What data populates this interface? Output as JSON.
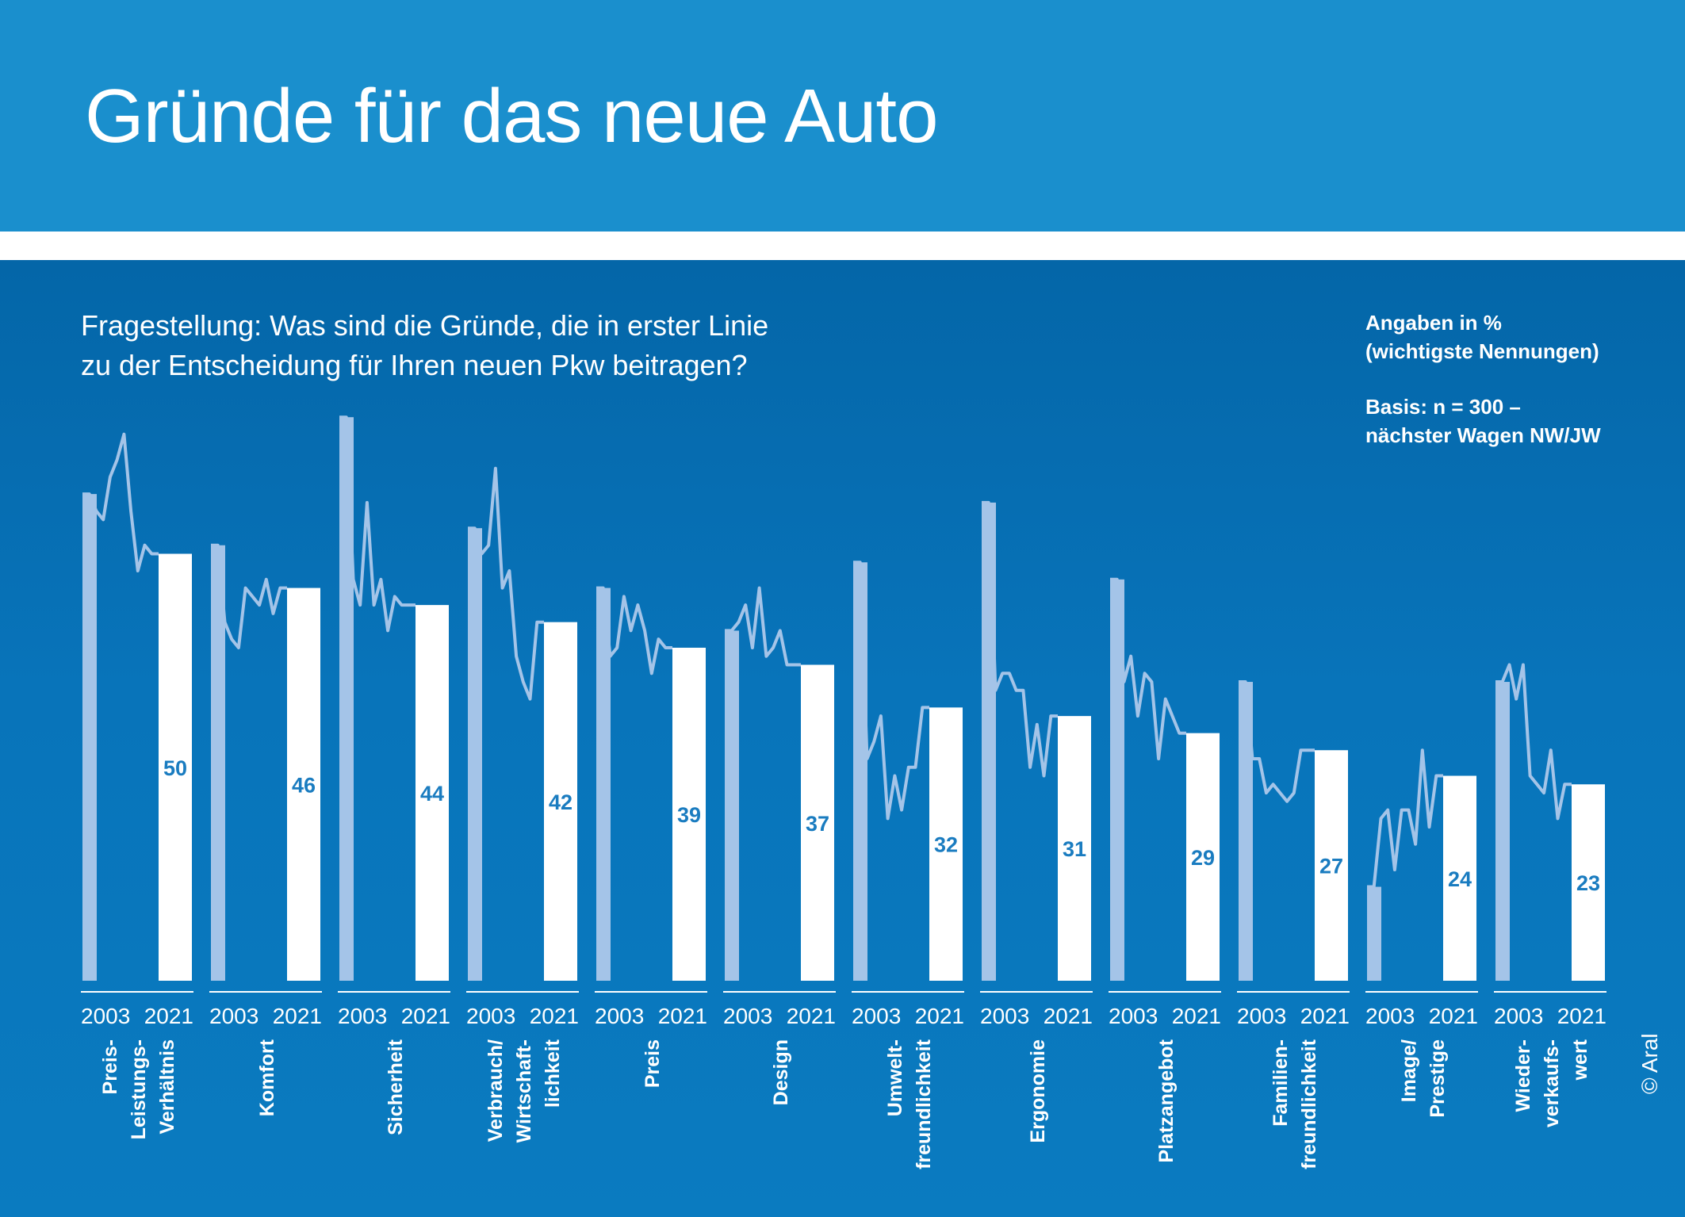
{
  "title": "Gründe für das neue Auto",
  "question": {
    "line1": "Fragestellung: Was sind die Gründe, die in erster Linie",
    "line2": "zu der Entscheidung für Ihren neuen Pkw beitragen?"
  },
  "notes": {
    "unit_line1": "Angaben in %",
    "unit_line2": "(wichtigste Nennungen)",
    "basis_line1": "Basis: n = 300 –",
    "basis_line2": "nächster Wagen NW/JW"
  },
  "copyright": "© Aral",
  "colors": {
    "header_bg": "#1a8fcd",
    "panel_bg": "#0874ba",
    "bar_2003": "#a4c4e8",
    "bar_2021": "#ffffff",
    "line": "#a4c4e8",
    "value_text": "#1a7cc0"
  },
  "chart_data": {
    "type": "bar",
    "title": "Gründe für das neue Auto",
    "year_start": "2003",
    "year_end": "2021",
    "ylim": [
      0,
      70
    ],
    "grid": false,
    "legend": "none",
    "series_note": "2003 (light bar), yearly trend line, 2021 (white bar with label)",
    "categories": [
      {
        "label": [
          "Preis-",
          "Leistungs-",
          "Verhältnis"
        ],
        "v2003": 57,
        "v2021": 50,
        "trend": [
          57,
          57,
          55,
          54,
          59,
          61,
          64,
          55,
          48,
          51,
          50,
          50
        ]
      },
      {
        "label": [
          "Komfort"
        ],
        "v2003": 51,
        "v2021": 46,
        "trend": [
          51,
          51,
          42,
          40,
          39,
          46,
          45,
          44,
          47,
          43,
          46,
          46
        ]
      },
      {
        "label": [
          "Sicherheit"
        ],
        "v2003": 66,
        "v2021": 44,
        "trend": [
          66,
          66,
          47,
          44,
          56,
          44,
          47,
          41,
          45,
          44,
          44,
          44
        ]
      },
      {
        "label": [
          "Verbrauch/",
          "Wirtschaft-",
          "lichkeit"
        ],
        "v2003": 53,
        "v2021": 42,
        "trend": [
          53,
          53,
          50,
          51,
          60,
          46,
          48,
          38,
          35,
          33,
          42,
          42
        ]
      },
      {
        "label": [
          "Preis"
        ],
        "v2003": 46,
        "v2021": 39,
        "trend": [
          46,
          46,
          38,
          39,
          45,
          41,
          44,
          41,
          36,
          40,
          39,
          39
        ]
      },
      {
        "label": [
          "Design"
        ],
        "v2003": 41,
        "v2021": 37,
        "trend": [
          41,
          41,
          42,
          44,
          39,
          46,
          38,
          39,
          41,
          37,
          37,
          37
        ]
      },
      {
        "label": [
          "Umwelt-",
          "freundlichkeit"
        ],
        "v2003": 49,
        "v2021": 32,
        "trend": [
          49,
          49,
          26,
          28,
          31,
          19,
          24,
          20,
          25,
          25,
          32,
          32
        ]
      },
      {
        "label": [
          "Ergonomie"
        ],
        "v2003": 56,
        "v2021": 31,
        "trend": [
          56,
          56,
          34,
          36,
          36,
          34,
          34,
          25,
          30,
          24,
          31,
          31
        ]
      },
      {
        "label": [
          "Platzangebot"
        ],
        "v2003": 47,
        "v2021": 29,
        "trend": [
          47,
          47,
          35,
          38,
          31,
          36,
          35,
          26,
          33,
          31,
          29,
          29
        ]
      },
      {
        "label": [
          "Familien-",
          "freundlichkeit"
        ],
        "v2003": 35,
        "v2021": 27,
        "trend": [
          35,
          35,
          26,
          26,
          22,
          23,
          22,
          21,
          22,
          27,
          27,
          27
        ]
      },
      {
        "label": [
          "Image/",
          "Prestige"
        ],
        "v2003": 11,
        "v2021": 24,
        "trend": [
          11,
          11,
          19,
          20,
          13,
          20,
          20,
          16,
          27,
          18,
          24,
          24
        ]
      },
      {
        "label": [
          "Wieder-",
          "verkaufs-",
          "wert"
        ],
        "v2003": 35,
        "v2021": 23,
        "trend": [
          35,
          35,
          37,
          33,
          37,
          24,
          23,
          22,
          27,
          19,
          23,
          23
        ]
      }
    ]
  }
}
